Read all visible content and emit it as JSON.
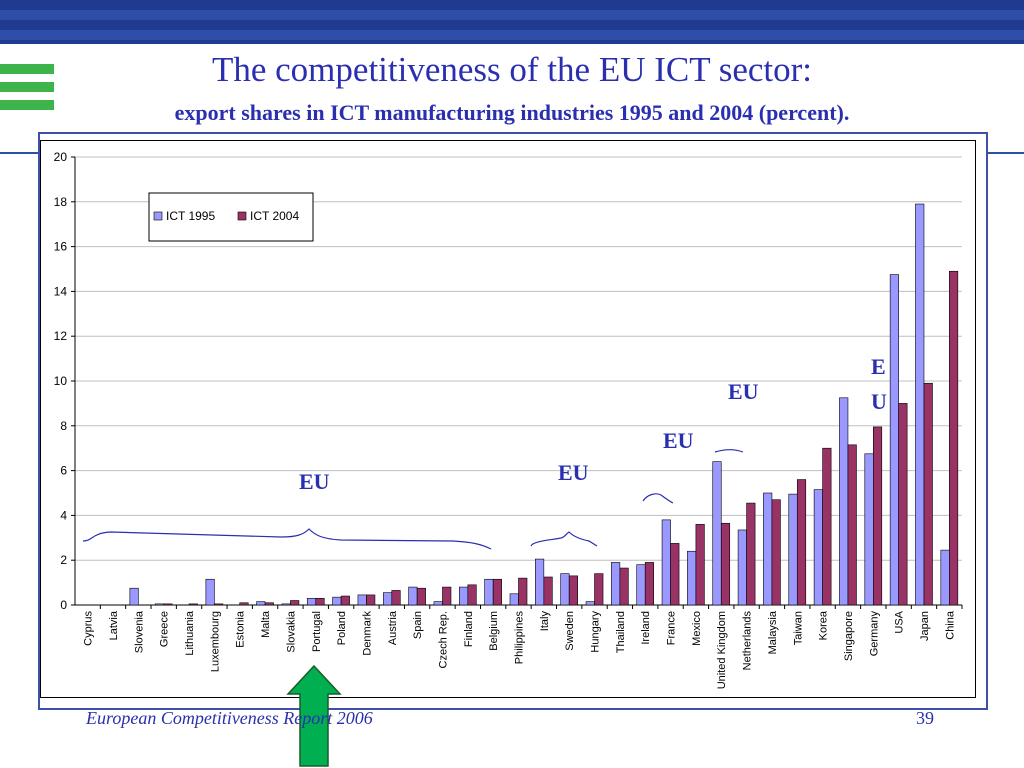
{
  "slide": {
    "title": "The competitiveness of the EU ICT sector:",
    "subtitle": "export shares in ICT manufacturing industries 1995 and 2004 (percent).",
    "footer_left": "European Competitiveness Report 2006",
    "footer_right": "39"
  },
  "colors": {
    "ict1995": "#9999ff",
    "ict2004": "#993366",
    "eu_label": "#2a2fb0",
    "arrow": "#00b050"
  },
  "annotations": [
    "EU",
    "EU",
    "EU",
    "EU",
    "E",
    "U"
  ],
  "chart_data": {
    "type": "bar",
    "categories": [
      "Cyprus",
      "Latvia",
      "Slovenia",
      "Greece",
      "Lithuania",
      "Luxembourg",
      "Estonia",
      "Malta",
      "Slovakia",
      "Portugal",
      "Poland",
      "Denmark",
      "Austria",
      "Spain",
      "Czech Rep.",
      "Finland",
      "Belgium",
      "Philippines",
      "Italy",
      "Sweden",
      "Hungary",
      "Thailand",
      "Ireland",
      "France",
      "Mexico",
      "United Kingdom",
      "Netherlands",
      "Malaysia",
      "Taiwan",
      "Korea",
      "Singapore",
      "Germany",
      "USA",
      "Japan",
      "China"
    ],
    "series": [
      {
        "name": "ICT 1995",
        "values": [
          0,
          0,
          0.75,
          0.05,
          0,
          1.15,
          0,
          0.15,
          0.05,
          0.3,
          0.35,
          0.45,
          0.55,
          0.8,
          0.15,
          0.8,
          1.15,
          0.5,
          2.05,
          1.4,
          0.15,
          1.9,
          1.8,
          3.8,
          2.4,
          6.4,
          3.35,
          5.0,
          4.95,
          5.15,
          9.25,
          6.75,
          14.75,
          17.9,
          2.45
        ]
      },
      {
        "name": "ICT 2004",
        "values": [
          0,
          0,
          0,
          0.05,
          0.05,
          0.05,
          0.1,
          0.1,
          0.2,
          0.3,
          0.4,
          0.45,
          0.65,
          0.75,
          0.8,
          0.9,
          1.15,
          1.2,
          1.25,
          1.3,
          1.4,
          1.65,
          1.9,
          2.75,
          3.6,
          3.65,
          4.55,
          4.7,
          5.6,
          7.0,
          7.15,
          7.95,
          9.0,
          9.9,
          14.9
        ]
      }
    ],
    "ylim": [
      0,
      20
    ],
    "yticks": [
      "0",
      "2",
      "4",
      "6",
      "8",
      "10",
      "12",
      "14",
      "16",
      "18",
      "20"
    ],
    "grid": true,
    "legend_position": "top-left"
  }
}
